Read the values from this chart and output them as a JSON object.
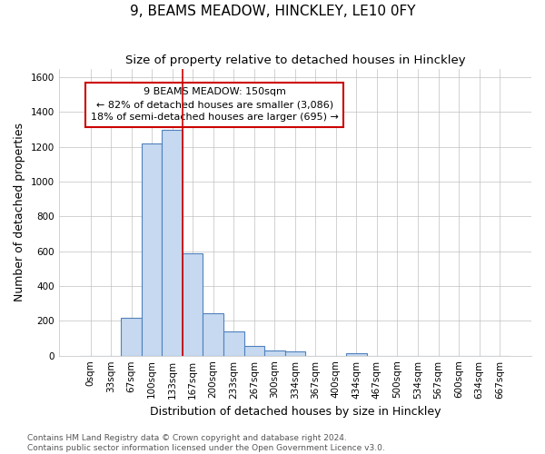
{
  "title": "9, BEAMS MEADOW, HINCKLEY, LE10 0FY",
  "subtitle": "Size of property relative to detached houses in Hinckley",
  "xlabel": "Distribution of detached houses by size in Hinckley",
  "ylabel": "Number of detached properties",
  "footnote": "Contains HM Land Registry data © Crown copyright and database right 2024.\nContains public sector information licensed under the Open Government Licence v3.0.",
  "bar_labels": [
    "0sqm",
    "33sqm",
    "67sqm",
    "100sqm",
    "133sqm",
    "167sqm",
    "200sqm",
    "233sqm",
    "267sqm",
    "300sqm",
    "334sqm",
    "367sqm",
    "400sqm",
    "434sqm",
    "467sqm",
    "500sqm",
    "534sqm",
    "567sqm",
    "600sqm",
    "634sqm",
    "667sqm"
  ],
  "bar_values": [
    0,
    0,
    220,
    1220,
    1300,
    590,
    245,
    140,
    55,
    30,
    25,
    0,
    0,
    15,
    0,
    0,
    0,
    0,
    0,
    0,
    0
  ],
  "bar_color": "#c6d9f0",
  "bar_edge_color": "#4f81bd",
  "ylim": [
    0,
    1650
  ],
  "yticks": [
    0,
    200,
    400,
    600,
    800,
    1000,
    1200,
    1400,
    1600
  ],
  "grid_color": "#c0c0c0",
  "background_color": "#ffffff",
  "property_line_x": 4.5,
  "property_line_color": "#cc0000",
  "annotation_text": "9 BEAMS MEADOW: 150sqm\n← 82% of detached houses are smaller (3,086)\n18% of semi-detached houses are larger (695) →",
  "annotation_box_color": "#ffffff",
  "annotation_box_edge": "#cc0000",
  "title_fontsize": 11,
  "subtitle_fontsize": 9.5,
  "axis_label_fontsize": 9,
  "tick_fontsize": 7.5,
  "annotation_fontsize": 8,
  "footnote_fontsize": 6.5
}
